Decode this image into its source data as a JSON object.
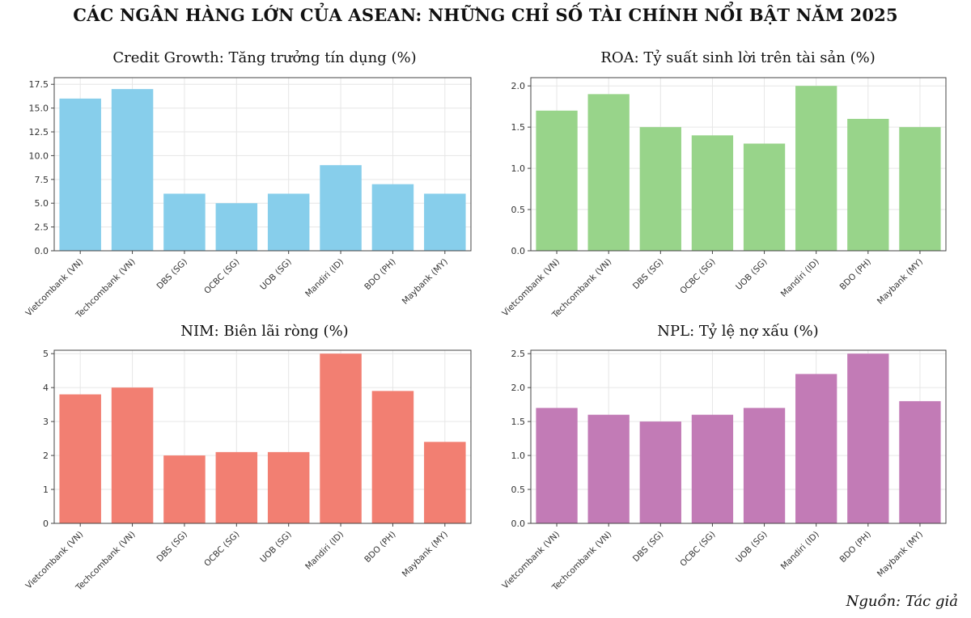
{
  "page": {
    "title": "CÁC NGÂN HÀNG LỚN CỦA ASEAN: NHỮNG CHỈ SỐ TÀI CHÍNH NỔI BẬT NĂM 2025",
    "source": "Nguồn: Tác giả"
  },
  "chart_data": [
    {
      "type": "bar",
      "title": "Credit Growth: Tăng trưởng tín dụng (%)",
      "categories": [
        "Vietcombank (VN)",
        "Techcombank (VN)",
        "DBS (SG)",
        "OCBC (SG)",
        "UOB (SG)",
        "Mandiri (ID)",
        "BDO (PH)",
        "Maybank (MY)"
      ],
      "values": [
        16,
        17,
        6,
        5,
        6,
        9,
        7,
        6
      ],
      "yticks": [
        "0.0",
        "2.5",
        "5.0",
        "7.5",
        "10.0",
        "12.5",
        "15.0",
        "17.5"
      ],
      "ylim": [
        0,
        18.2
      ],
      "color": "#87ceeb",
      "xlabel": "",
      "ylabel": "",
      "grid": true
    },
    {
      "type": "bar",
      "title": "ROA: Tỷ suất sinh lời trên tài sản (%)",
      "categories": [
        "Vietcombank (VN)",
        "Techcombank (VN)",
        "DBS (SG)",
        "OCBC (SG)",
        "UOB (SG)",
        "Mandiri (ID)",
        "BDO (PH)",
        "Maybank (MY)"
      ],
      "values": [
        1.7,
        1.9,
        1.5,
        1.4,
        1.3,
        2.0,
        1.6,
        1.5
      ],
      "yticks": [
        "0.0",
        "0.5",
        "1.0",
        "1.5",
        "2.0"
      ],
      "ylim": [
        0,
        2.1
      ],
      "color": "#98d48a",
      "xlabel": "",
      "ylabel": "",
      "grid": true
    },
    {
      "type": "bar",
      "title": "NIM: Biên lãi ròng (%)",
      "categories": [
        "Vietcombank (VN)",
        "Techcombank (VN)",
        "DBS (SG)",
        "OCBC (SG)",
        "UOB (SG)",
        "Mandiri (ID)",
        "BDO (PH)",
        "Maybank (MY)"
      ],
      "values": [
        3.8,
        4.0,
        2.0,
        2.1,
        2.1,
        5.0,
        3.9,
        2.4
      ],
      "yticks": [
        "0",
        "1",
        "2",
        "3",
        "4",
        "5"
      ],
      "ylim": [
        0,
        5.1
      ],
      "color": "#f27f72",
      "xlabel": "",
      "ylabel": "",
      "grid": true
    },
    {
      "type": "bar",
      "title": "NPL: Tỷ lệ nợ xấu (%)",
      "categories": [
        "Vietcombank (VN)",
        "Techcombank (VN)",
        "DBS (SG)",
        "OCBC (SG)",
        "UOB (SG)",
        "Mandiri (ID)",
        "BDO (PH)",
        "Maybank (MY)"
      ],
      "values": [
        1.7,
        1.6,
        1.5,
        1.6,
        1.7,
        2.2,
        2.5,
        1.8
      ],
      "yticks": [
        "0.0",
        "0.5",
        "1.0",
        "1.5",
        "2.0",
        "2.5"
      ],
      "ylim": [
        0,
        2.55
      ],
      "color": "#c27bb6",
      "xlabel": "",
      "ylabel": "",
      "grid": true
    }
  ]
}
